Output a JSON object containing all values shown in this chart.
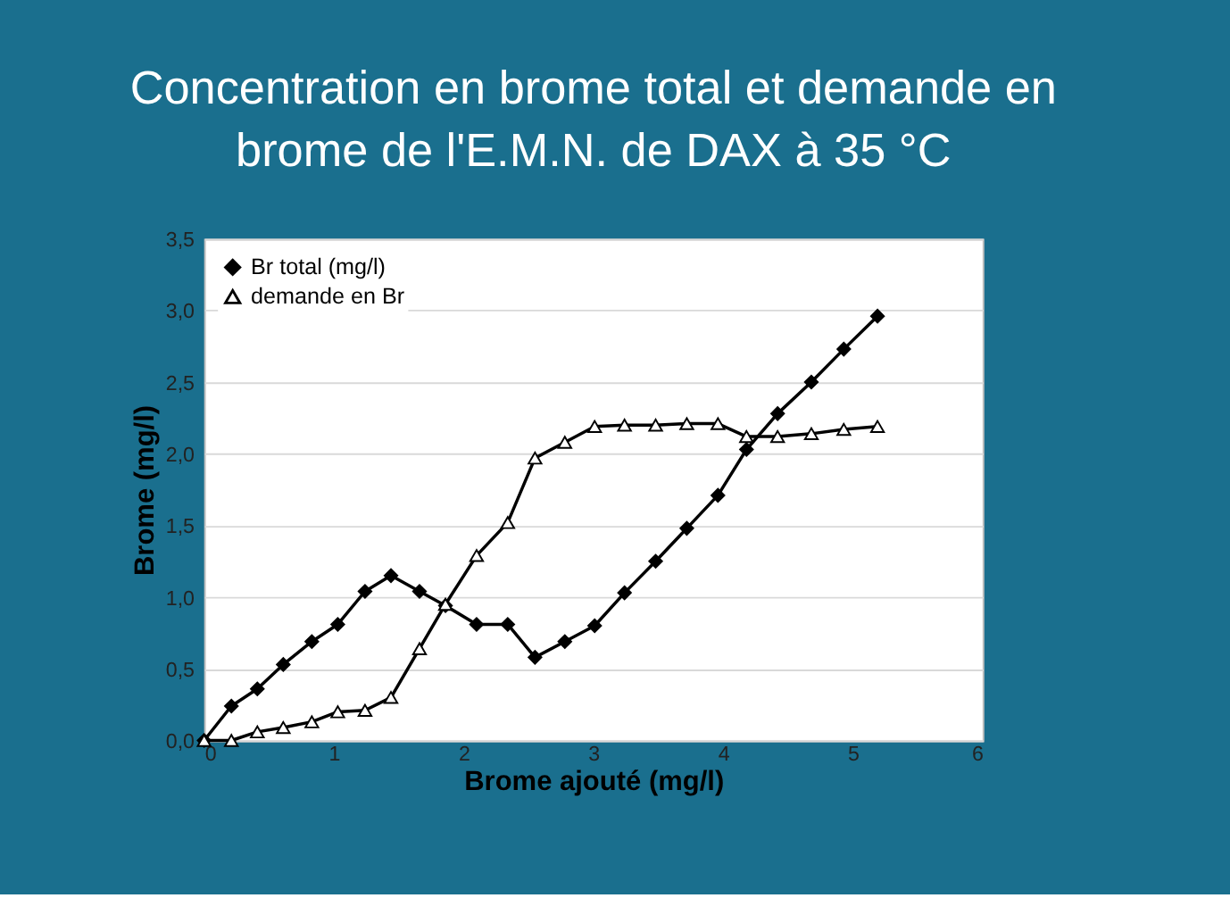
{
  "chart_data": {
    "type": "line",
    "title": [
      "Concentration en brome total et demande en",
      "brome de l'E.M.N. de DAX à 35 °C"
    ],
    "xlabel": "Brome ajouté (mg/l)",
    "ylabel": "Brome (mg/l)",
    "x": [
      0,
      0.21,
      0.41,
      0.61,
      0.83,
      1.03,
      1.24,
      1.44,
      1.66,
      1.86,
      2.1,
      2.34,
      2.55,
      2.78,
      3.01,
      3.24,
      3.48,
      3.72,
      3.96,
      4.18,
      4.42,
      4.68,
      4.93,
      5.19
    ],
    "series": [
      {
        "name": "Br total (mg/l)",
        "color": "#000000",
        "marker": "diamond",
        "values": [
          0,
          0.24,
          0.36,
          0.53,
          0.69,
          0.81,
          1.04,
          1.15,
          1.04,
          0.94,
          0.81,
          0.81,
          0.58,
          0.69,
          0.8,
          1.03,
          1.25,
          1.48,
          1.71,
          2.03,
          2.28,
          2.5,
          2.73,
          2.96
        ]
      },
      {
        "name": "demande en Br",
        "color": "#000000",
        "marker": "triangle",
        "values": [
          0,
          0,
          0.06,
          0.09,
          0.13,
          0.2,
          0.21,
          0.3,
          0.64,
          0.95,
          1.29,
          1.52,
          1.97,
          2.08,
          2.19,
          2.2,
          2.2,
          2.21,
          2.21,
          2.12,
          2.12,
          2.14,
          2.17,
          2.19
        ]
      }
    ],
    "xlim": [
      0,
      6
    ],
    "xticks": [
      0,
      1,
      2,
      3,
      4,
      5,
      6
    ],
    "ylim": [
      0,
      3.5
    ],
    "yticks": [
      {
        "value": 0,
        "label": "0,0"
      },
      {
        "value": 0.5,
        "label": "0,5"
      },
      {
        "value": 1,
        "label": "1,0"
      },
      {
        "value": 1.5,
        "label": "1,5"
      },
      {
        "value": 2,
        "label": "2,0"
      },
      {
        "value": 2.5,
        "label": "2,5"
      },
      {
        "value": 3,
        "label": "3,0"
      },
      {
        "value": 3.5,
        "label": "3,5"
      }
    ],
    "grid": "y",
    "legend": "top left",
    "line_style": "solid"
  }
}
